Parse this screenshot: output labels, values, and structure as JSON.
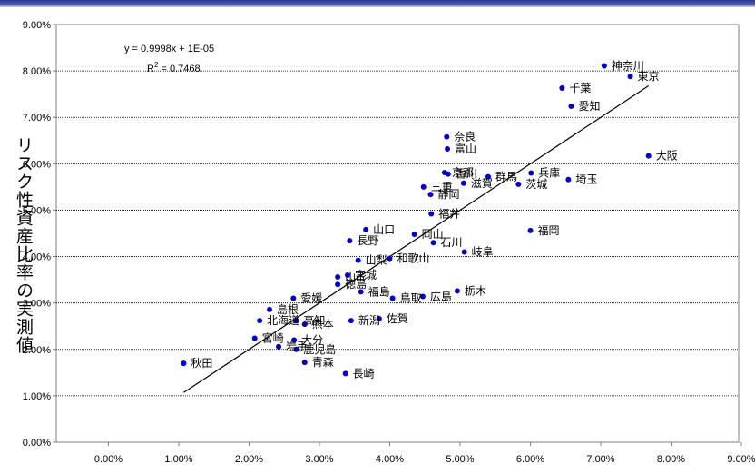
{
  "chart_data": {
    "type": "scatter",
    "ylabel": "リスク性資産比率の実測値",
    "xlabel": "",
    "xlim": [
      0,
      0.09
    ],
    "ylim": [
      0,
      0.09
    ],
    "xticks": [
      "0.00%",
      "1.00%",
      "2.00%",
      "3.00%",
      "4.00%",
      "5.00%",
      "6.00%",
      "7.00%",
      "8.00%",
      "9.00%"
    ],
    "yticks": [
      "0.00%",
      "1.00%",
      "2.00%",
      "3.00%",
      "4.00%",
      "5.00%",
      "6.00%",
      "7.00%",
      "8.00%",
      "9.00%"
    ],
    "equation": "y = 0.9998x + 1E-05",
    "r2_label": "R",
    "r2_exp": "2",
    "r2_value": " = 0.7468",
    "trendline": {
      "slope": 0.9998,
      "intercept": 1e-05,
      "x_range": [
        0.0107,
        0.0768
      ]
    },
    "marker_color": "#0000cc",
    "points": [
      {
        "name": "神奈川",
        "x": 0.0705,
        "y": 0.0811
      },
      {
        "name": "東京",
        "x": 0.0742,
        "y": 0.0788
      },
      {
        "name": "千葉",
        "x": 0.0645,
        "y": 0.0763
      },
      {
        "name": "愛知",
        "x": 0.0658,
        "y": 0.0724
      },
      {
        "name": "大阪",
        "x": 0.0768,
        "y": 0.0617
      },
      {
        "name": "奈良",
        "x": 0.0481,
        "y": 0.0658
      },
      {
        "name": "富山",
        "x": 0.0482,
        "y": 0.0632
      },
      {
        "name": "京都",
        "x": 0.0478,
        "y": 0.0581
      },
      {
        "name": "香川",
        "x": 0.0483,
        "y": 0.0578
      },
      {
        "name": "滋賀",
        "x": 0.0505,
        "y": 0.0558
      },
      {
        "name": "群馬",
        "x": 0.054,
        "y": 0.0572
      },
      {
        "name": "兵庫",
        "x": 0.0601,
        "y": 0.058
      },
      {
        "name": "茨城",
        "x": 0.0583,
        "y": 0.0556
      },
      {
        "name": "埼玉",
        "x": 0.0654,
        "y": 0.0566
      },
      {
        "name": "三重",
        "x": 0.0448,
        "y": 0.055
      },
      {
        "name": "静岡",
        "x": 0.0458,
        "y": 0.0534
      },
      {
        "name": "福井",
        "x": 0.0459,
        "y": 0.0492
      },
      {
        "name": "福岡",
        "x": 0.06,
        "y": 0.0456
      },
      {
        "name": "山口",
        "x": 0.0366,
        "y": 0.0458
      },
      {
        "name": "岡山",
        "x": 0.0435,
        "y": 0.0448
      },
      {
        "name": "長野",
        "x": 0.0343,
        "y": 0.0434
      },
      {
        "name": "石川",
        "x": 0.0462,
        "y": 0.043
      },
      {
        "name": "岐阜",
        "x": 0.0506,
        "y": 0.041
      },
      {
        "name": "山梨",
        "x": 0.0355,
        "y": 0.0392
      },
      {
        "name": "和歌山",
        "x": 0.04,
        "y": 0.0396
      },
      {
        "name": "宮城",
        "x": 0.034,
        "y": 0.036
      },
      {
        "name": "山形",
        "x": 0.0326,
        "y": 0.0356
      },
      {
        "name": "秋田県",
        "x": 0.0326,
        "y": 0.034
      },
      {
        "name": "福島",
        "x": 0.0359,
        "y": 0.0324
      },
      {
        "name": "鳥取",
        "x": 0.0404,
        "y": 0.031
      },
      {
        "name": "広島",
        "x": 0.0447,
        "y": 0.0314
      },
      {
        "name": "栃木",
        "x": 0.0496,
        "y": 0.0326
      },
      {
        "name": "愛媛",
        "x": 0.0263,
        "y": 0.031
      },
      {
        "name": "島根",
        "x": 0.0229,
        "y": 0.0286
      },
      {
        "name": "北海道",
        "x": 0.0215,
        "y": 0.0262
      },
      {
        "name": "高知",
        "x": 0.0267,
        "y": 0.0262
      },
      {
        "name": "熊本",
        "x": 0.0279,
        "y": 0.0254
      },
      {
        "name": "新潟",
        "x": 0.0345,
        "y": 0.0262
      },
      {
        "name": "佐賀",
        "x": 0.0385,
        "y": 0.0266
      },
      {
        "name": "宮崎",
        "x": 0.0208,
        "y": 0.0224
      },
      {
        "name": "大分",
        "x": 0.0264,
        "y": 0.022
      },
      {
        "name": "岩手",
        "x": 0.0242,
        "y": 0.0206
      },
      {
        "name": "鹿児島",
        "x": 0.0267,
        "y": 0.02
      },
      {
        "name": "青森",
        "x": 0.0279,
        "y": 0.0172
      },
      {
        "name": "長崎",
        "x": 0.0337,
        "y": 0.0148
      },
      {
        "name": "秋田",
        "x": 0.0107,
        "y": 0.017
      }
    ],
    "visible_labels": {
      "神奈川": "神奈川",
      "東京": "東京",
      "千葉": "千葉",
      "愛知": "愛知",
      "大阪": "大阪",
      "奈良": "奈良",
      "富山": "富山",
      "京都": "京都",
      "香川": "香川",
      "滋賀": "滋賀",
      "群馬": "群馬",
      "兵庫": "兵庫",
      "茨城": "茨城",
      "埼玉": "埼玉",
      "三重": "三重",
      "静岡": "静岡",
      "福井": "福井",
      "福岡": "福岡",
      "山口": "山口",
      "岡山": "岡山",
      "長野": "長野",
      "石川": "石川",
      "岐阜": "岐阜",
      "山梨": "山梨",
      "和歌山": "和歌山",
      "宮城": "宮城",
      "山形": "山形",
      "秋田県": "徳島",
      "福島": "福島",
      "鳥取": "鳥取",
      "広島": "広島",
      "栃木": "栃木",
      "愛媛": "愛媛",
      "島根": "島根",
      "北海道": "北海道",
      "高知": "高知",
      "熊本": "熊本",
      "新潟": "新潟",
      "佐賀": "佐賀",
      "宮崎": "宮崎",
      "大分": "大分",
      "岩手": "岩手",
      "鹿児島": "鹿児島",
      "青森": "青森",
      "長崎": "長崎",
      "秋田": "秋田"
    }
  }
}
